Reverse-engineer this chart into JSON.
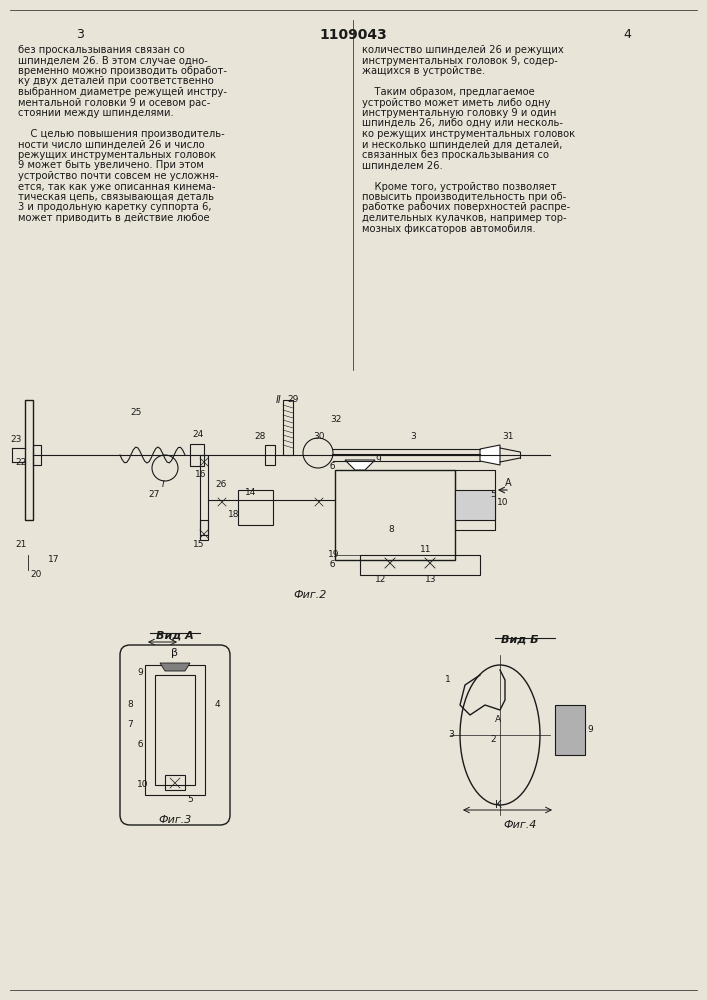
{
  "page_width": 7.07,
  "page_height": 10.0,
  "bg_color": "#e8e4d8",
  "text_color": "#1a1a1a",
  "line_color": "#1a1a1a",
  "patent_number": "1109043",
  "page_numbers": [
    "3",
    "4"
  ],
  "col1_text": [
    "без проскальзывания связан со",
    "шпинделем 26. В этом случае одно-",
    "временно можно производить обработ-",
    "ку двух деталей при соответственно",
    "выбранном диаметре режущей инстру-",
    "ментальной головки 9 и осевом рас-",
    "стоянии между шпинделями.",
    "",
    "    С целью повышения производитель-",
    "ности число шпинделей 26 и число",
    "режущих инструментальных головок",
    "9 может быть увеличено. При этом",
    "устройство почти совсем не усложня-",
    "ется, так как уже описанная кинема-",
    "тическая цепь, связывающая деталь",
    "3 и продольную каретку суппорта 6,",
    "может приводить в действие любое"
  ],
  "col2_text": [
    "количество шпинделей 26 и режущих",
    "инструментальных головок 9, содер-",
    "жащихся в устройстве.",
    "",
    "    Таким образом, предлагаемое",
    "устройство может иметь либо одну",
    "инструментальную головку 9 и один",
    "шпиндель 26, либо одну или несколь-",
    "ко режущих инструментальных головок",
    "и несколько шпинделей для деталей,",
    "связанных без проскальзывания со",
    "шпинделем 26.",
    "",
    "    Кроме того, устройство позволяет",
    "повысить производительность при об-",
    "работке рабочих поверхностей распре-",
    "делительных кулачков, например тор-",
    "мозных фиксаторов автомобиля."
  ],
  "fig2_caption": "Фиг.2",
  "fig3_caption": "Фиг.3",
  "fig4_caption": "Фиг.4",
  "vidA_label": "Вид А",
  "vidB_label": "Вид Б"
}
